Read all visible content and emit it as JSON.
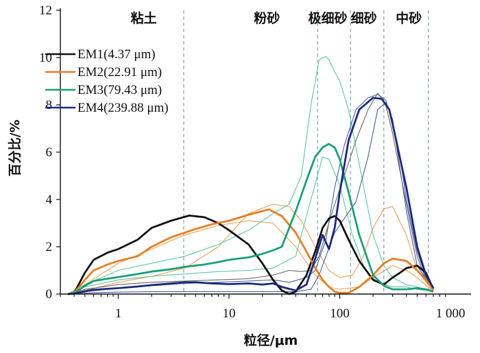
{
  "chart_data": {
    "type": "line",
    "xlabel": "粒径/μm",
    "ylabel": "百分比/%",
    "xscale": "log",
    "xlim": [
      0.3,
      1000
    ],
    "ylim": [
      0,
      12
    ],
    "x_ticks": [
      {
        "value": 1,
        "label": "1"
      },
      {
        "value": 10,
        "label": "10"
      },
      {
        "value": 100,
        "label": "100"
      },
      {
        "value": 1000,
        "label": "1 000"
      }
    ],
    "y_ticks": [
      {
        "value": 0,
        "label": "0"
      },
      {
        "value": 2,
        "label": "2"
      },
      {
        "value": 4,
        "label": "4"
      },
      {
        "value": 6,
        "label": "6"
      },
      {
        "value": 8,
        "label": "8"
      },
      {
        "value": 10,
        "label": "10"
      },
      {
        "value": 12,
        "label": "12"
      }
    ],
    "regions": [
      {
        "label": "粘土",
        "x": 1.7
      },
      {
        "label": "粉砂",
        "x": 22
      },
      {
        "label": "极细砂",
        "x": 78
      },
      {
        "label": "细砂",
        "x": 165
      },
      {
        "label": "中砂",
        "x": 420
      }
    ],
    "boundaries": [
      3.9,
      63,
      125,
      250,
      630
    ],
    "legend": {
      "position": "top-left"
    },
    "series": [
      {
        "name": "EM1(4.37 μm)",
        "color": "#111111",
        "x": [
          0.35,
          0.4,
          0.5,
          0.6,
          0.8,
          1,
          1.5,
          2,
          3,
          4.37,
          6,
          8,
          10,
          15,
          20,
          25,
          30,
          35,
          40,
          50,
          60,
          70,
          80,
          90,
          100,
          120,
          150,
          200,
          250,
          300,
          350,
          400,
          500,
          600,
          700
        ],
        "y": [
          0,
          0.05,
          0.9,
          1.45,
          1.75,
          1.9,
          2.3,
          2.8,
          3.1,
          3.32,
          3.25,
          3.0,
          2.7,
          2.1,
          1.3,
          0.6,
          0.15,
          0,
          0.1,
          0.8,
          1.8,
          2.8,
          3.2,
          3.3,
          3.1,
          2.3,
          1.4,
          0.6,
          0.4,
          0.7,
          0.9,
          1.1,
          1.2,
          0.9,
          0.2
        ]
      },
      {
        "name": "EM2(22.91 μm)",
        "color": "#e67e22",
        "x": [
          0.35,
          0.4,
          0.5,
          0.6,
          0.8,
          1,
          1.5,
          2,
          3,
          4,
          5,
          7,
          10,
          15,
          22.91,
          30,
          40,
          50,
          60,
          70,
          80,
          90,
          100,
          120,
          150,
          200,
          250,
          300,
          400,
          500,
          600,
          700
        ],
        "y": [
          0,
          0.05,
          0.6,
          1.0,
          1.25,
          1.4,
          1.6,
          2.0,
          2.4,
          2.6,
          2.75,
          2.95,
          3.1,
          3.35,
          3.58,
          3.3,
          2.6,
          1.8,
          1.1,
          0.6,
          0.3,
          0.1,
          0.05,
          0.05,
          0.3,
          0.8,
          1.3,
          1.5,
          1.4,
          1.0,
          0.6,
          0.2
        ]
      },
      {
        "name": "EM3(79.43 μm)",
        "color": "#17a077",
        "x": [
          0.35,
          0.4,
          0.5,
          0.6,
          0.8,
          1,
          1.5,
          2,
          3,
          4,
          6,
          8,
          10,
          15,
          20,
          25,
          30,
          40,
          50,
          60,
          70,
          79.43,
          90,
          100,
          120,
          150,
          200,
          250,
          300,
          400,
          500,
          600,
          700
        ],
        "y": [
          0,
          0.03,
          0.35,
          0.55,
          0.65,
          0.72,
          0.85,
          0.95,
          1.05,
          1.15,
          1.25,
          1.35,
          1.45,
          1.55,
          1.7,
          1.85,
          2.0,
          3.5,
          4.8,
          5.8,
          6.2,
          6.35,
          6.2,
          5.7,
          4.3,
          2.5,
          0.8,
          0.35,
          0.2,
          0.2,
          0.25,
          0.2,
          0.1
        ]
      },
      {
        "name": "EM4(239.88 μm)",
        "color": "#1b2a7a",
        "x": [
          0.35,
          0.4,
          0.5,
          0.6,
          0.8,
          1,
          1.5,
          2,
          3,
          4,
          5,
          7,
          10,
          15,
          20,
          25,
          30,
          40,
          50,
          60,
          70,
          80,
          90,
          100,
          120,
          150,
          200,
          239.88,
          280,
          300,
          400,
          500,
          600,
          700
        ],
        "y": [
          0,
          0.02,
          0.12,
          0.18,
          0.22,
          0.25,
          0.32,
          0.38,
          0.45,
          0.5,
          0.5,
          0.45,
          0.42,
          0.45,
          0.4,
          0.45,
          0.3,
          0.15,
          0.4,
          1.5,
          2.5,
          1.9,
          2.8,
          4.3,
          6.5,
          7.8,
          8.3,
          8.25,
          7.8,
          7.2,
          4.5,
          2.0,
          0.8,
          0.25
        ]
      }
    ],
    "thin_lines": [
      {
        "color": "#e8a05a",
        "x": [
          0.35,
          0.5,
          1,
          2,
          4,
          8,
          15,
          25,
          35,
          45,
          60,
          80,
          100,
          130,
          160,
          200,
          250,
          300,
          400,
          500,
          700
        ],
        "y": [
          0,
          0.15,
          0.5,
          0.75,
          1.1,
          2.0,
          3.4,
          3.8,
          3.7,
          3.1,
          2.0,
          1.0,
          0.7,
          0.8,
          1.5,
          2.8,
          3.6,
          3.7,
          2.5,
          1.0,
          0.1
        ]
      },
      {
        "color": "#e8a05a",
        "x": [
          0.35,
          0.5,
          1,
          2,
          4,
          8,
          15,
          25,
          40,
          60,
          80,
          100,
          150,
          200,
          300,
          400,
          500,
          700
        ],
        "y": [
          0,
          0.4,
          1.3,
          1.9,
          2.5,
          2.9,
          3.1,
          3.0,
          2.0,
          0.8,
          0.3,
          0.2,
          0.3,
          0.7,
          1.2,
          1.0,
          0.7,
          0.1
        ]
      },
      {
        "color": "#5bc6a0",
        "x": [
          0.35,
          0.5,
          1,
          2,
          4,
          8,
          15,
          25,
          35,
          45,
          55,
          65,
          75,
          80,
          90,
          100,
          120,
          150,
          200,
          250,
          300,
          400,
          500,
          700
        ],
        "y": [
          0,
          0.4,
          1.0,
          1.3,
          1.6,
          2.1,
          2.7,
          3.4,
          3.8,
          5.0,
          8.0,
          9.9,
          10.05,
          9.9,
          9.4,
          9.0,
          7.8,
          5.5,
          2.5,
          1.2,
          0.7,
          0.4,
          0.3,
          0.1
        ]
      },
      {
        "color": "#5bc6a0",
        "x": [
          0.35,
          0.5,
          1,
          2,
          4,
          8,
          15,
          25,
          40,
          55,
          70,
          80,
          100,
          130,
          170,
          220,
          300,
          400,
          500,
          700
        ],
        "y": [
          0,
          0.3,
          0.6,
          0.75,
          0.85,
          0.95,
          1.0,
          1.1,
          1.6,
          4.0,
          5.8,
          5.7,
          4.6,
          2.5,
          1.0,
          0.5,
          0.3,
          0.3,
          0.2,
          0.1
        ]
      },
      {
        "color": "#4a5aa8",
        "x": [
          0.35,
          0.5,
          1,
          2,
          4,
          8,
          15,
          25,
          35,
          50,
          60,
          75,
          90,
          110,
          140,
          180,
          220,
          260,
          300,
          350,
          400,
          500,
          600,
          700
        ],
        "y": [
          0,
          0.1,
          0.25,
          0.35,
          0.45,
          0.5,
          0.55,
          0.6,
          0.5,
          0.7,
          1.0,
          2.3,
          4.5,
          6.3,
          7.8,
          8.3,
          8.45,
          8.2,
          7.3,
          5.8,
          4.0,
          1.8,
          0.7,
          0.2
        ]
      },
      {
        "color": "#4a5aa8",
        "x": [
          0.35,
          0.5,
          1,
          2,
          4,
          8,
          15,
          25,
          40,
          55,
          65,
          75,
          90,
          110,
          140,
          180,
          220,
          260,
          300,
          400,
          500,
          700
        ],
        "y": [
          0,
          0.05,
          0.08,
          0.1,
          0.1,
          0.1,
          0.1,
          0.1,
          0.1,
          0.2,
          0.8,
          1.6,
          2.6,
          3.2,
          3.9,
          5.8,
          7.8,
          8.1,
          7.4,
          3.5,
          1.2,
          0.15
        ]
      },
      {
        "color": "#666666",
        "x": [
          0.35,
          0.5,
          1,
          2,
          4,
          8,
          15,
          25,
          35,
          45,
          55,
          65,
          75,
          90,
          110,
          140,
          180,
          220,
          260,
          300,
          400,
          500,
          600,
          700
        ],
        "y": [
          0,
          0.2,
          0.4,
          0.5,
          0.55,
          0.6,
          0.65,
          0.8,
          1.0,
          0.95,
          1.0,
          1.6,
          2.6,
          3.8,
          5.0,
          6.5,
          7.8,
          8.5,
          8.0,
          6.8,
          3.8,
          1.6,
          0.6,
          0.15
        ]
      }
    ]
  }
}
